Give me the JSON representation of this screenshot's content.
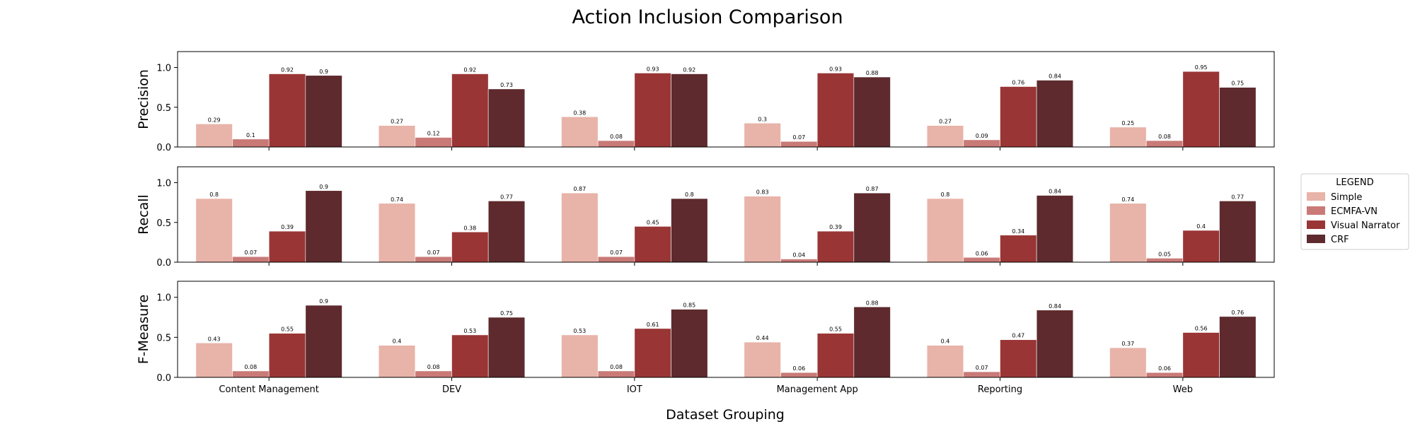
{
  "chart_data": {
    "type": "bar",
    "title": "Action Inclusion Comparison",
    "xlabel": "Dataset Grouping",
    "categories": [
      "Content Management",
      "DEV",
      "IOT",
      "Management App",
      "Reporting",
      "Web"
    ],
    "legend": {
      "title": "LEGEND",
      "placement": "right",
      "entries": [
        "Simple",
        "ECMFA-VN",
        "Visual Narrator",
        "CRF"
      ]
    },
    "colors": {
      "Simple": "#e8b3a8",
      "ECMFA-VN": "#c97a77",
      "Visual Narrator": "#9a3535",
      "CRF": "#5e2a2d"
    },
    "ylim": [
      0,
      1.2
    ],
    "yticks": [
      "0.0",
      "0.5",
      "1.0"
    ],
    "ytick_values": [
      0,
      0.5,
      1.0
    ],
    "panels": [
      {
        "ylabel": "Precision",
        "series": [
          {
            "name": "Simple",
            "values": [
              0.29,
              0.27,
              0.38,
              0.3,
              0.27,
              0.25
            ]
          },
          {
            "name": "ECMFA-VN",
            "values": [
              0.1,
              0.12,
              0.08,
              0.07,
              0.09,
              0.08
            ]
          },
          {
            "name": "Visual Narrator",
            "values": [
              0.92,
              0.92,
              0.93,
              0.93,
              0.76,
              0.95
            ]
          },
          {
            "name": "CRF",
            "values": [
              0.9,
              0.73,
              0.92,
              0.88,
              0.84,
              0.75
            ]
          }
        ]
      },
      {
        "ylabel": "Recall",
        "series": [
          {
            "name": "Simple",
            "values": [
              0.8,
              0.74,
              0.87,
              0.83,
              0.8,
              0.74
            ]
          },
          {
            "name": "ECMFA-VN",
            "values": [
              0.07,
              0.07,
              0.07,
              0.04,
              0.06,
              0.05
            ]
          },
          {
            "name": "Visual Narrator",
            "values": [
              0.39,
              0.38,
              0.45,
              0.39,
              0.34,
              0.4
            ]
          },
          {
            "name": "CRF",
            "values": [
              0.9,
              0.77,
              0.8,
              0.87,
              0.84,
              0.77
            ]
          }
        ]
      },
      {
        "ylabel": "F-Measure",
        "series": [
          {
            "name": "Simple",
            "values": [
              0.43,
              0.4,
              0.53,
              0.44,
              0.4,
              0.37
            ]
          },
          {
            "name": "ECMFA-VN",
            "values": [
              0.08,
              0.08,
              0.08,
              0.06,
              0.07,
              0.06
            ]
          },
          {
            "name": "Visual Narrator",
            "values": [
              0.55,
              0.53,
              0.61,
              0.55,
              0.47,
              0.56
            ]
          },
          {
            "name": "CRF",
            "values": [
              0.9,
              0.75,
              0.85,
              0.88,
              0.84,
              0.76
            ]
          }
        ]
      }
    ]
  }
}
